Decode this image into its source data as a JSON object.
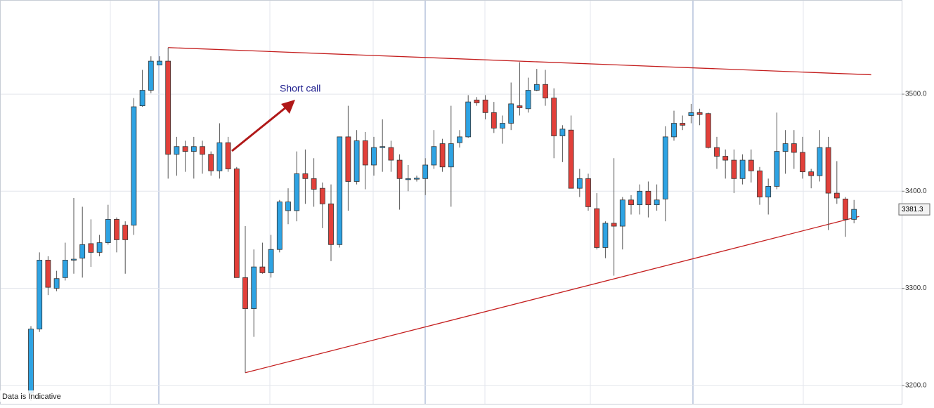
{
  "chart_data": {
    "type": "candlestick",
    "open": [
      3192,
      3258,
      3329,
      3300,
      3311,
      3329,
      3331,
      3346,
      3337,
      3347,
      3371,
      3365,
      3365,
      3488,
      3504,
      3530,
      3534,
      3438,
      3446,
      3441,
      3446,
      3438,
      3421,
      3450,
      3423,
      3311,
      3279,
      3322,
      3316,
      3340,
      3380,
      3380,
      3418,
      3413,
      3403,
      3387,
      3345,
      3456,
      3410,
      3452,
      3427,
      3445,
      3445,
      3432,
      3413,
      3413,
      3413,
      3427,
      3449,
      3425,
      3450,
      3456,
      3494,
      3494,
      3481,
      3465,
      3470,
      3488,
      3485,
      3504,
      3510,
      3496,
      3457,
      3463,
      3403,
      3413,
      3382,
      3342,
      3367,
      3364,
      3391,
      3386,
      3400,
      3386,
      3392,
      3456,
      3470,
      3478,
      3481,
      3480,
      3445,
      3436,
      3432,
      3413,
      3432,
      3421,
      3394,
      3405,
      3441,
      3449,
      3440,
      3420,
      3416,
      3445,
      3398,
      3392,
      3371
    ],
    "high": [
      3261,
      3337,
      3333,
      3318,
      3347,
      3393,
      3384,
      3371,
      3355,
      3386,
      3373,
      3369,
      3496,
      3525,
      3539,
      3539,
      3548,
      3456,
      3452,
      3456,
      3452,
      3441,
      3470,
      3456,
      3425,
      3364,
      3340,
      3347,
      3355,
      3391,
      3403,
      3441,
      3443,
      3434,
      3409,
      3407,
      3456,
      3488,
      3463,
      3461,
      3456,
      3474,
      3452,
      3438,
      3427,
      3416,
      3434,
      3463,
      3454,
      3488,
      3463,
      3499,
      3497,
      3499,
      3492,
      3478,
      3512,
      3533,
      3517,
      3526,
      3525,
      3506,
      3468,
      3478,
      3423,
      3418,
      3398,
      3369,
      3434,
      3394,
      3396,
      3407,
      3410,
      3407,
      3467,
      3483,
      3478,
      3490,
      3485,
      3481,
      3456,
      3443,
      3443,
      3438,
      3443,
      3425,
      3413,
      3481,
      3463,
      3463,
      3456,
      3423,
      3463,
      3456,
      3431,
      3394,
      3391
    ],
    "low": [
      3184,
      3255,
      3293,
      3297,
      3308,
      3315,
      3311,
      3322,
      3333,
      3345,
      3337,
      3315,
      3355,
      3487,
      3501,
      3530,
      3413,
      3416,
      3420,
      3413,
      3418,
      3416,
      3413,
      3420,
      3311,
      3213,
      3250,
      3315,
      3311,
      3337,
      3366,
      3369,
      3387,
      3384,
      3362,
      3328,
      3342,
      3380,
      3407,
      3402,
      3416,
      3420,
      3420,
      3381,
      3400,
      3410,
      3396,
      3423,
      3420,
      3384,
      3445,
      3455,
      3488,
      3474,
      3460,
      3449,
      3463,
      3478,
      3481,
      3503,
      3488,
      3434,
      3430,
      3403,
      3394,
      3380,
      3340,
      3331,
      3313,
      3340,
      3376,
      3376,
      3373,
      3380,
      3369,
      3452,
      3463,
      3470,
      3468,
      3444,
      3423,
      3413,
      3398,
      3407,
      3409,
      3386,
      3376,
      3402,
      3418,
      3423,
      3413,
      3403,
      3410,
      3360,
      3387,
      3353,
      3367
    ],
    "close": [
      3258,
      3329,
      3301,
      3310,
      3329,
      3330,
      3345,
      3337,
      3347,
      3371,
      3350,
      3350,
      3487,
      3504,
      3534,
      3534,
      3438,
      3446,
      3441,
      3446,
      3438,
      3421,
      3450,
      3423,
      3311,
      3279,
      3322,
      3316,
      3340,
      3389,
      3389,
      3418,
      3413,
      3402,
      3387,
      3345,
      3456,
      3410,
      3452,
      3427,
      3445,
      3446,
      3432,
      3413,
      3413,
      3413.5,
      3427,
      3446,
      3425,
      3449,
      3456,
      3492,
      3491,
      3481,
      3465,
      3470,
      3490,
      3486,
      3504,
      3510,
      3496,
      3457,
      3464,
      3403,
      3413,
      3384,
      3342,
      3367,
      3364,
      3391,
      3386,
      3400,
      3386,
      3391,
      3456,
      3470,
      3468,
      3481,
      3479,
      3445,
      3436,
      3432,
      3413,
      3432,
      3421,
      3394,
      3405,
      3441,
      3449,
      3440,
      3420,
      3416,
      3445,
      3398,
      3393,
      3371,
      3381.3
    ],
    "up_color": "#2ea3e3",
    "down_color": "#e2403a",
    "ylim": [
      3181,
      3597
    ],
    "yticks": [
      {
        "value": 3200,
        "label": "3200.0"
      },
      {
        "value": 3300,
        "label": "3300.0"
      },
      {
        "value": 3400,
        "label": "3400.0"
      },
      {
        "value": 3500,
        "label": "3500.0"
      }
    ],
    "grid": true,
    "last_price": 3381.3,
    "annotation": "Short call",
    "footnote": "Data is Indicative",
    "trendlines": [
      {
        "from": [
          16,
          3548
        ],
        "to": [
          98,
          3520
        ],
        "color": "#c41e1e"
      },
      {
        "from": [
          25,
          3213
        ],
        "to": [
          96.6,
          3374
        ],
        "color": "#c41e1e"
      }
    ]
  }
}
